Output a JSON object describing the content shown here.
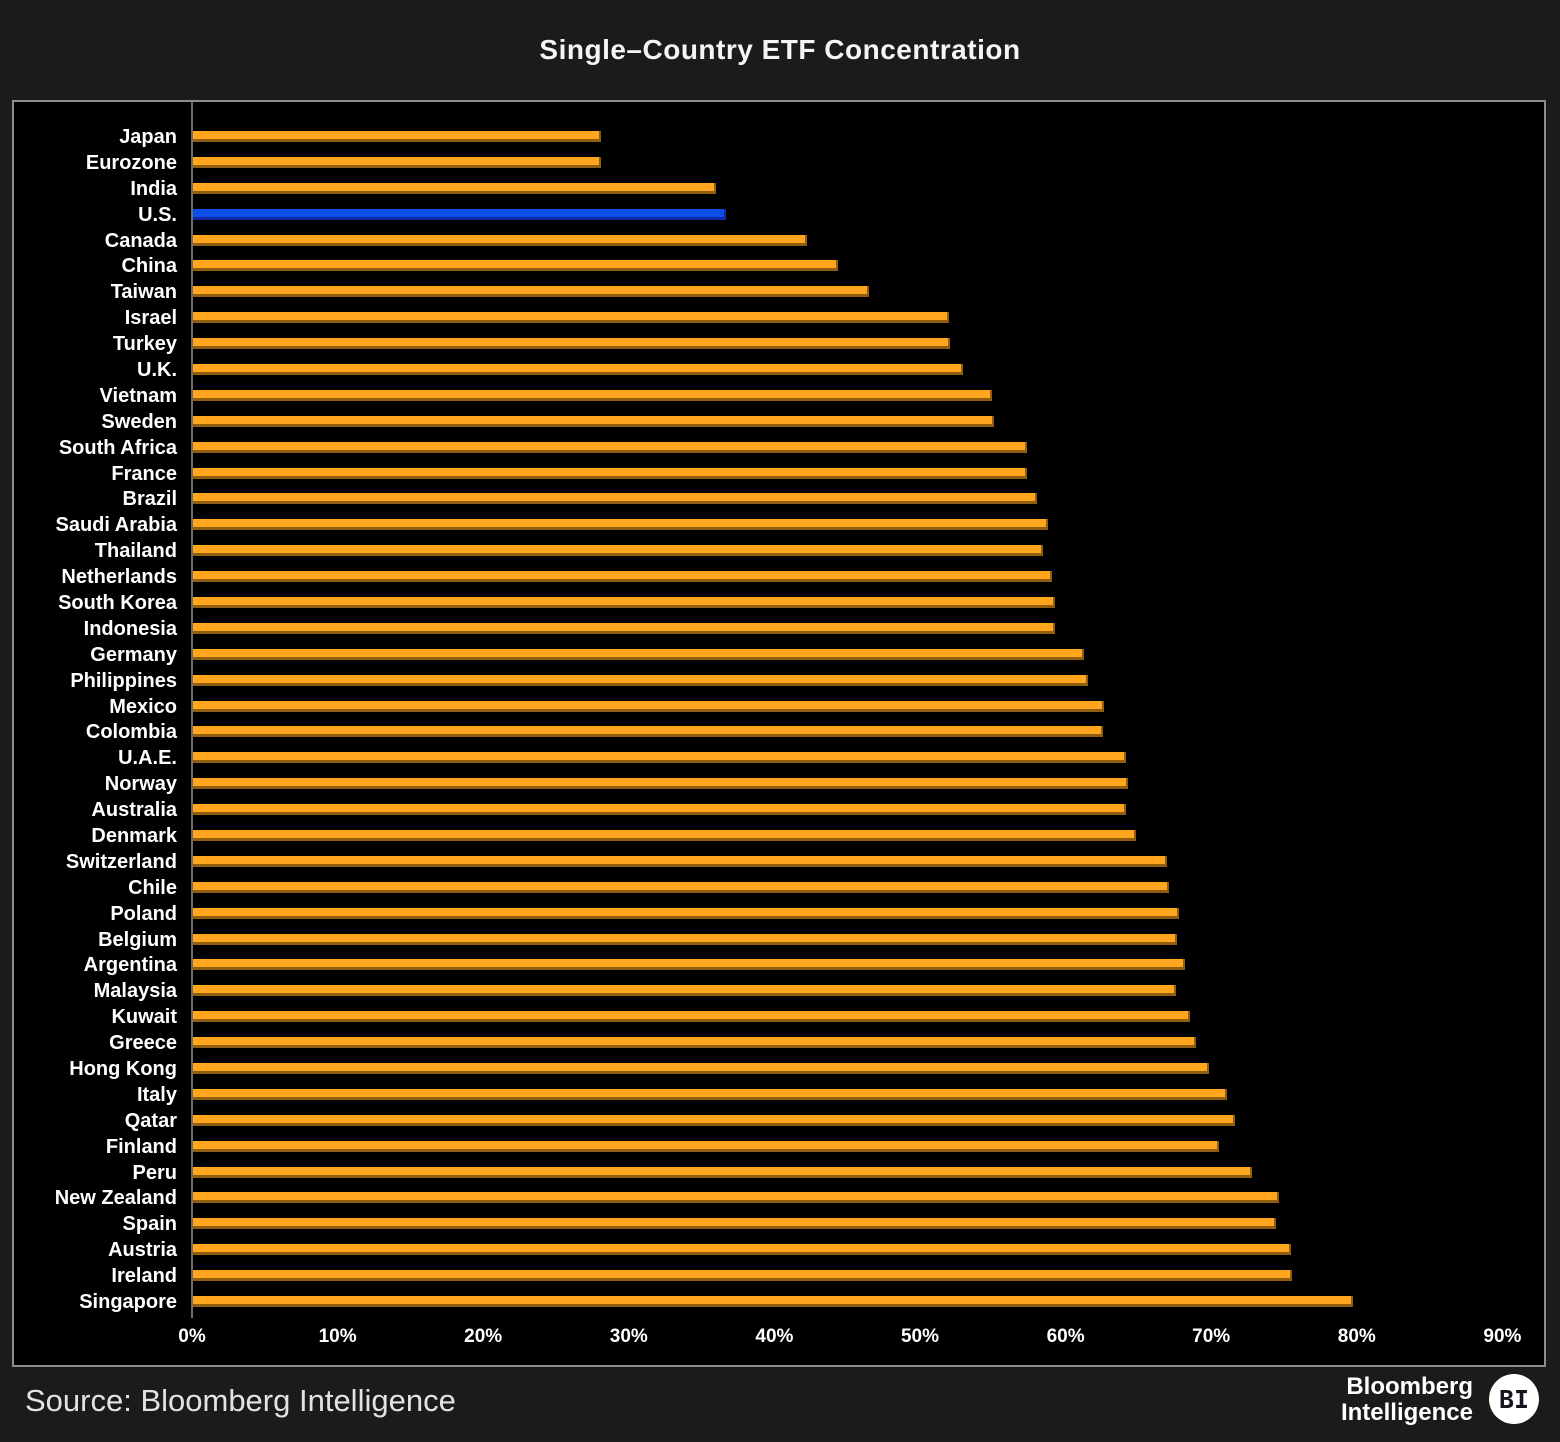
{
  "title": "Single–Country ETF Concentration",
  "source": "Source: Bloomberg Intelligence",
  "logo": {
    "line1": "Bloomberg",
    "line2": "Intelligence",
    "badge": "BI"
  },
  "colors": {
    "background": "#1b1b1b",
    "plot_background": "#000000",
    "bar": "#ffa51e",
    "bar_edge": "#8f5e0e",
    "highlight_bar": "#0a50e8",
    "highlight_edge": "#1326a8",
    "text": "#ffffff"
  },
  "chart_data": {
    "type": "bar",
    "orientation": "horizontal",
    "title": "Single–Country ETF Concentration",
    "xlabel": "",
    "ylabel": "",
    "unit": "%",
    "xlim": [
      0,
      90
    ],
    "x_ticks": [
      "0%",
      "10%",
      "20%",
      "30%",
      "40%",
      "50%",
      "60%",
      "70%",
      "80%",
      "90%"
    ],
    "grid": false,
    "legend": "none",
    "highlight_category": "U.S.",
    "categories": [
      "Japan",
      "Eurozone",
      "India",
      "U.S.",
      "Canada",
      "China",
      "Taiwan",
      "Israel",
      "Turkey",
      "U.K.",
      "Vietnam",
      "Sweden",
      "South Africa",
      "France",
      "Brazil",
      "Saudi Arabia",
      "Thailand",
      "Netherlands",
      "South Korea",
      "Indonesia",
      "Germany",
      "Philippines",
      "Mexico",
      "Colombia",
      "U.A.E.",
      "Norway",
      "Australia",
      "Denmark",
      "Switzerland",
      "Chile",
      "Poland",
      "Belgium",
      "Argentina",
      "Malaysia",
      "Kuwait",
      "Greece",
      "Hong Kong",
      "Italy",
      "Qatar",
      "Finland",
      "Peru",
      "New Zealand",
      "Spain",
      "Austria",
      "Ireland",
      "Singapore"
    ],
    "values": [
      28.0,
      28.0,
      35.9,
      36.6,
      42.2,
      44.3,
      46.4,
      51.9,
      52.0,
      52.9,
      54.9,
      55.0,
      57.3,
      57.3,
      58.0,
      58.7,
      58.4,
      59.0,
      59.2,
      59.2,
      61.2,
      61.5,
      62.6,
      62.5,
      64.1,
      64.2,
      64.1,
      64.8,
      66.9,
      67.0,
      67.7,
      67.6,
      68.1,
      67.5,
      68.5,
      68.9,
      69.8,
      71.0,
      71.6,
      70.5,
      72.7,
      74.6,
      74.4,
      75.4,
      75.5,
      79.7
    ]
  }
}
